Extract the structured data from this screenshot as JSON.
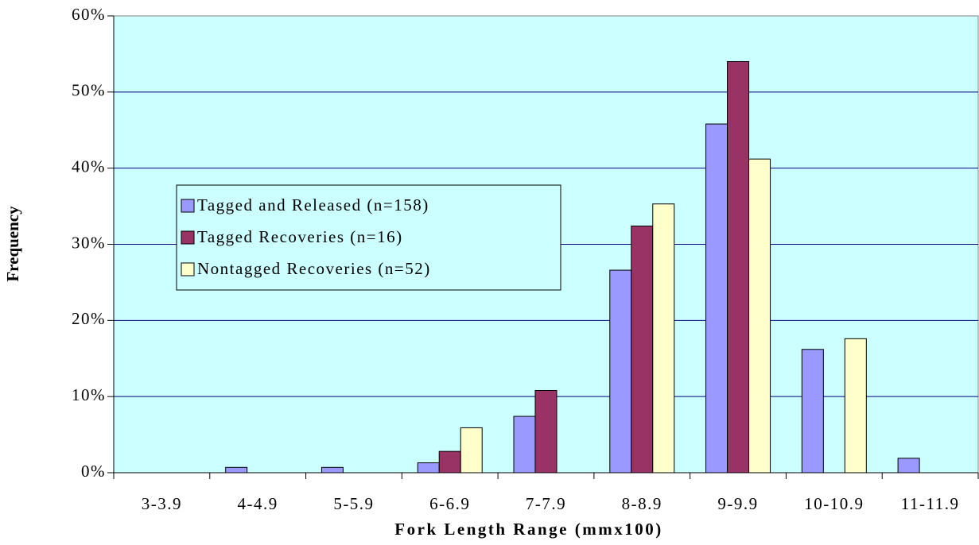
{
  "chart_data": {
    "type": "bar",
    "xlabel": "Fork Length Range (mmx100)",
    "ylabel": "Frequency",
    "categories": [
      "3-3.9",
      "4-4.9",
      "5-5.9",
      "6-6.9",
      "7-7.9",
      "8-8.9",
      "9-9.9",
      "10-10.9",
      "11-11.9"
    ],
    "series": [
      {
        "name": "Tagged and Released (n=158)",
        "color": "#9999ff",
        "values": [
          0,
          0.7,
          0.7,
          1.3,
          7.4,
          26.6,
          45.8,
          16.2,
          1.9
        ]
      },
      {
        "name": "Tagged Recoveries (n=16)",
        "color": "#993366",
        "values": [
          0,
          0,
          0,
          2.8,
          10.8,
          32.4,
          54,
          0,
          0
        ]
      },
      {
        "name": "Nontagged Recoveries (n=52)",
        "color": "#ffffcc",
        "values": [
          0,
          0,
          0,
          5.9,
          0,
          35.3,
          41.2,
          17.6,
          0
        ]
      }
    ],
    "ylim": [
      0,
      60
    ],
    "yticks": [
      {
        "value": 0,
        "label": "0%"
      },
      {
        "value": 10,
        "label": "10%"
      },
      {
        "value": 20,
        "label": "20%"
      },
      {
        "value": 30,
        "label": "30%"
      },
      {
        "value": 40,
        "label": "40%"
      },
      {
        "value": 50,
        "label": "50%"
      },
      {
        "value": 60,
        "label": "60%"
      }
    ],
    "grid": true,
    "legend": "left"
  }
}
